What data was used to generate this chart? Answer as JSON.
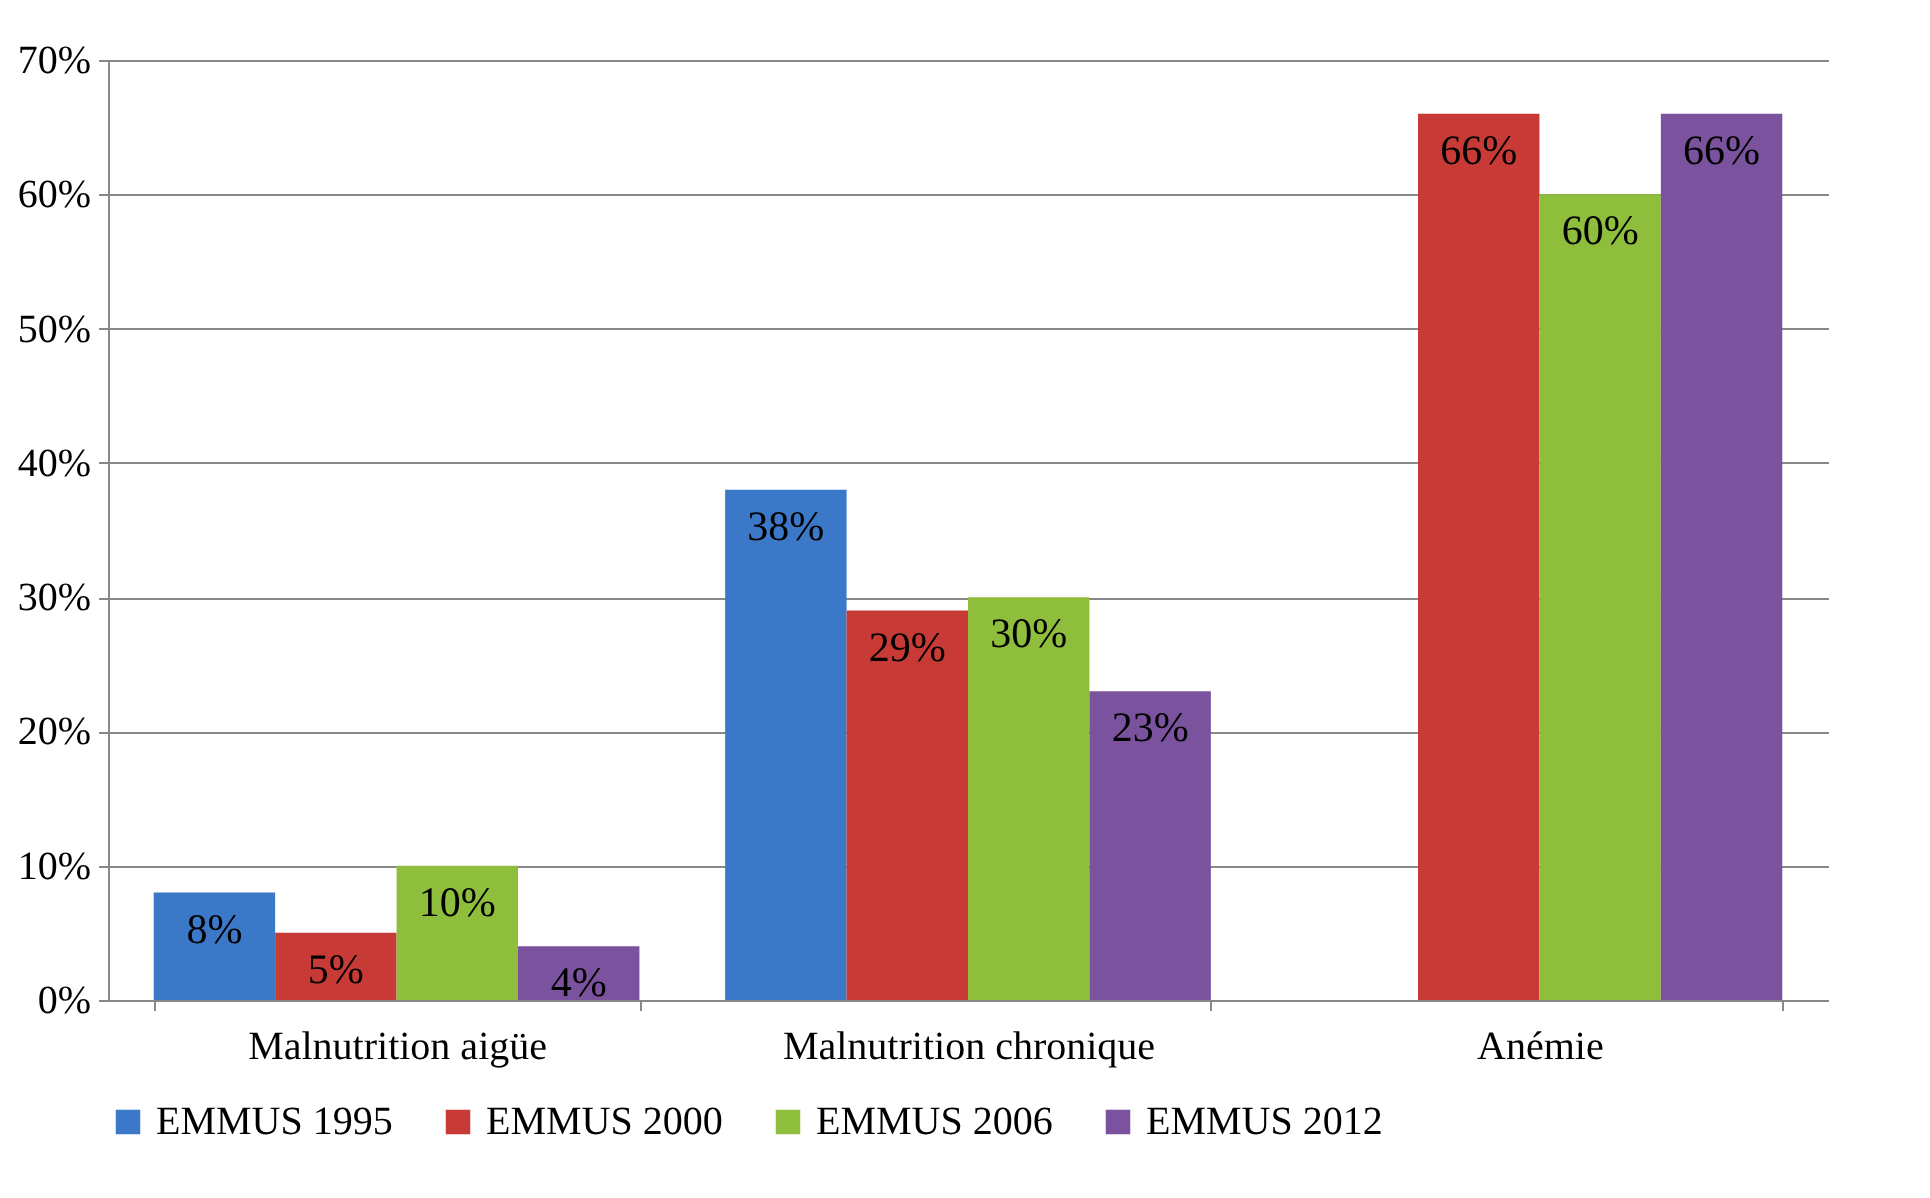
{
  "chart_data": {
    "type": "bar",
    "categories": [
      "Malnutrition aigüe",
      "Malnutrition chronique",
      "Anémie"
    ],
    "series": [
      {
        "name": "EMMUS 1995",
        "color": "#3b78c8",
        "values": [
          8,
          38,
          null
        ],
        "value_labels": [
          "8%",
          "38%",
          null
        ]
      },
      {
        "name": "EMMUS 2000",
        "color": "#c83a36",
        "values": [
          5,
          29,
          66
        ],
        "value_labels": [
          "5%",
          "29%",
          "66%"
        ]
      },
      {
        "name": "EMMUS 2006",
        "color": "#8fbe3c",
        "values": [
          10,
          30,
          60
        ],
        "value_labels": [
          "10%",
          "30%",
          "60%"
        ]
      },
      {
        "name": "EMMUS 2012",
        "color": "#7b529e",
        "values": [
          4,
          23,
          66
        ],
        "value_labels": [
          "4%",
          "23%",
          "66%"
        ]
      }
    ],
    "ylim": [
      0,
      70
    ],
    "yticks": [
      {
        "value": 0,
        "label": "0%"
      },
      {
        "value": 10,
        "label": "10%"
      },
      {
        "value": 20,
        "label": "20%"
      },
      {
        "value": 30,
        "label": "30%"
      },
      {
        "value": 40,
        "label": "40%"
      },
      {
        "value": 50,
        "label": "50%"
      },
      {
        "value": 60,
        "label": "60%"
      },
      {
        "value": 70,
        "label": "70%"
      }
    ],
    "grid": "y",
    "legend": "bottom"
  }
}
